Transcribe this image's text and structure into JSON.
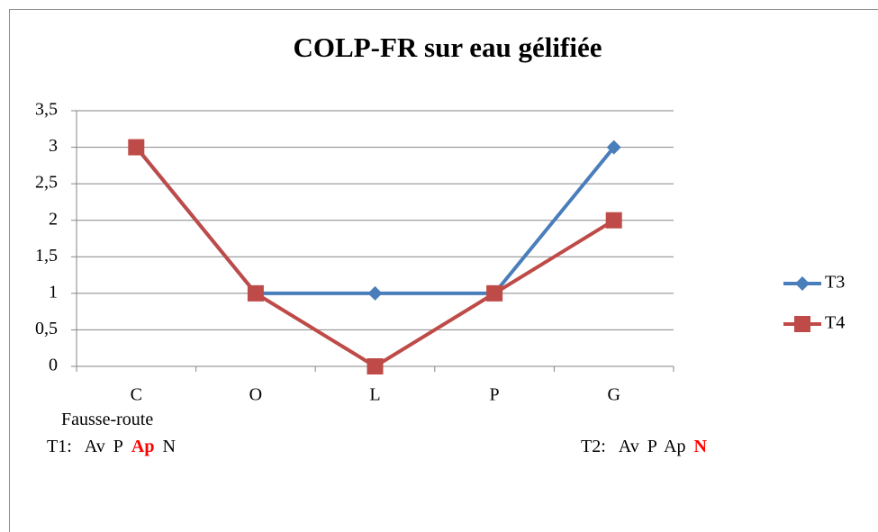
{
  "chart_data": {
    "type": "line",
    "title": "COLP-FR sur eau gélifiée",
    "categories": [
      "C",
      "O",
      "L",
      "P",
      "G"
    ],
    "series": [
      {
        "name": "T3",
        "color": "#4a7ebb",
        "marker": "diamond",
        "values": [
          3,
          1,
          1,
          1,
          3
        ]
      },
      {
        "name": "T4",
        "color": "#be4b48",
        "marker": "square",
        "values": [
          3,
          1,
          0,
          1,
          2
        ]
      }
    ],
    "ylim": [
      0,
      3.5
    ],
    "yticks": [
      0,
      {
        "value": 0.5,
        "label": "0,5"
      },
      1,
      {
        "value": 1.5,
        "label": "1,5"
      },
      2,
      {
        "value": 2.5,
        "label": "2,5"
      },
      3,
      {
        "value": 3.5,
        "label": "3,5"
      }
    ],
    "grid": true,
    "legend": "right",
    "annotations": [
      {
        "parts": [
          {
            "text": "Fausse-route"
          }
        ]
      },
      {
        "parts": [
          {
            "text": "T1:"
          },
          {
            "text": "Av"
          },
          {
            "text": "P"
          },
          {
            "text": "Ap",
            "color": "#ff0000",
            "bold": true
          },
          {
            "text": "N"
          }
        ]
      },
      {
        "parts": [
          {
            "text": "T2:"
          },
          {
            "text": "Av"
          },
          {
            "text": "P"
          },
          {
            "text": "Ap"
          },
          {
            "text": "N",
            "color": "#ff0000",
            "bold": true
          }
        ]
      }
    ]
  }
}
